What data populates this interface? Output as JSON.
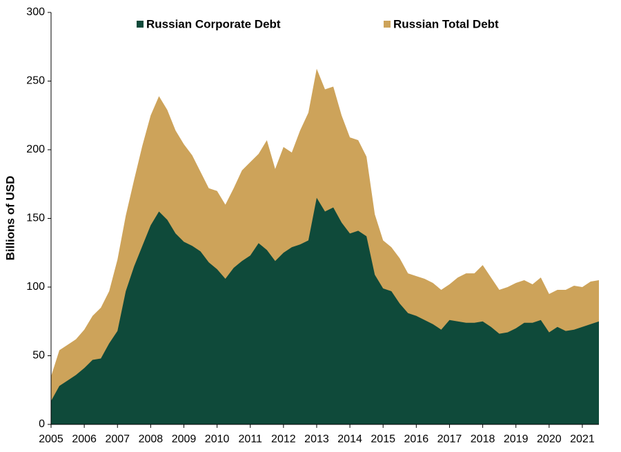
{
  "chart_data": {
    "type": "area",
    "y_label": "Billions of USD",
    "x": [
      2005,
      2005.25,
      2005.5,
      2005.75,
      2006,
      2006.25,
      2006.5,
      2006.75,
      2007,
      2007.25,
      2007.5,
      2007.75,
      2008,
      2008.25,
      2008.5,
      2008.75,
      2009,
      2009.25,
      2009.5,
      2009.75,
      2010,
      2010.25,
      2010.5,
      2010.75,
      2011,
      2011.25,
      2011.5,
      2011.75,
      2012,
      2012.25,
      2012.5,
      2012.75,
      2013,
      2013.25,
      2013.5,
      2013.75,
      2014,
      2014.25,
      2014.5,
      2014.75,
      2015,
      2015.25,
      2015.5,
      2015.75,
      2016,
      2016.25,
      2016.5,
      2016.75,
      2017,
      2017.25,
      2017.5,
      2017.75,
      2018,
      2018.25,
      2018.5,
      2018.75,
      2019,
      2019.25,
      2019.5,
      2019.75,
      2020,
      2020.25,
      2020.5,
      2020.75,
      2021,
      2021.25,
      2021.5
    ],
    "series": [
      {
        "name": "Russian Total Debt",
        "color": "#cda35a",
        "values": [
          35,
          54,
          58,
          62,
          69,
          79,
          85,
          97,
          120,
          152,
          178,
          203,
          225,
          239,
          229,
          214,
          204,
          196,
          184,
          172,
          170,
          160,
          172,
          185,
          191,
          197,
          207,
          186,
          202,
          198,
          214,
          227,
          259,
          244,
          246,
          225,
          209,
          207,
          195,
          153,
          134,
          129,
          121,
          110,
          108,
          106,
          103,
          98,
          102,
          107,
          110,
          110,
          116,
          107,
          98,
          100,
          103,
          105,
          102,
          107,
          95,
          98,
          98,
          101,
          100,
          104,
          105
        ]
      },
      {
        "name": "Russian Corporate Debt",
        "color": "#0f4a3a",
        "values": [
          17,
          28,
          32,
          36,
          41,
          47,
          48,
          59,
          68,
          97,
          115,
          130,
          145,
          155,
          149,
          139,
          133,
          130,
          126,
          118,
          113,
          106,
          114,
          119,
          123,
          132,
          127,
          119,
          125,
          129,
          131,
          134,
          165,
          155,
          158,
          147,
          139,
          141,
          137,
          109,
          99,
          97,
          88,
          81,
          79,
          76,
          73,
          69,
          76,
          75,
          74,
          74,
          75,
          71,
          66,
          67,
          70,
          74,
          74,
          76,
          67,
          71,
          68,
          69,
          71,
          73,
          75
        ]
      }
    ],
    "legend_order": [
      1,
      0
    ],
    "legend": "top",
    "xlim": [
      2005,
      2021.5
    ],
    "xticks": [
      2005,
      2006,
      2007,
      2008,
      2009,
      2010,
      2011,
      2012,
      2013,
      2014,
      2015,
      2016,
      2017,
      2018,
      2019,
      2020,
      2021
    ],
    "ylim": [
      0,
      300
    ],
    "yticks": [
      0,
      50,
      100,
      150,
      200,
      250,
      300
    ]
  }
}
